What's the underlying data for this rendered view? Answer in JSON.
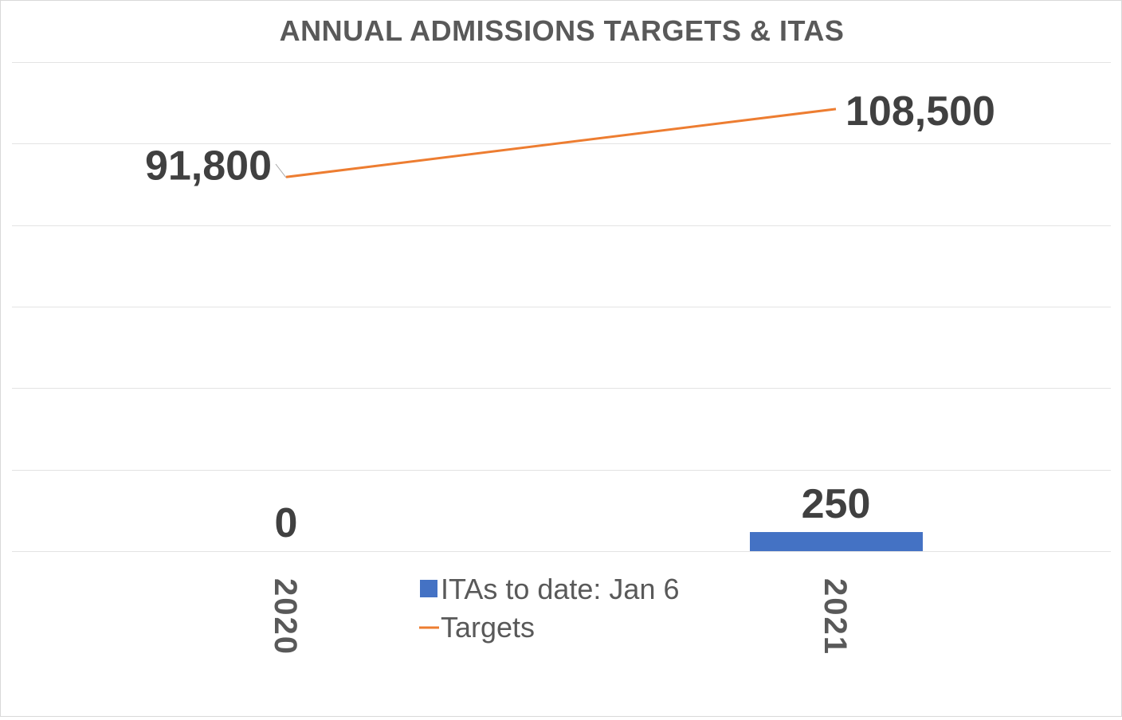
{
  "chart_data": {
    "type": "bar",
    "title": "ANNUAL ADMISSIONS TARGETS & ITAS",
    "categories": [
      "2020",
      "2021"
    ],
    "series": [
      {
        "name": "ITAs to date: Jan 6",
        "type": "bar",
        "axis": "secondary",
        "values": [
          0,
          250
        ],
        "labels": [
          "0",
          "250"
        ],
        "color": "#4472c4"
      },
      {
        "name": "Targets",
        "type": "line",
        "axis": "primary",
        "values": [
          91800,
          108500
        ],
        "labels": [
          "91,800",
          "108,500"
        ],
        "color": "#ed7d31"
      }
    ],
    "ylim": [
      0,
      120000
    ],
    "y_gridline_step": 20000,
    "secondary_ylim": [
      0,
      6400
    ],
    "y_axis_labels_visible": false,
    "grid": true,
    "legend": "bottom-center",
    "xlabel": "",
    "ylabel": ""
  }
}
